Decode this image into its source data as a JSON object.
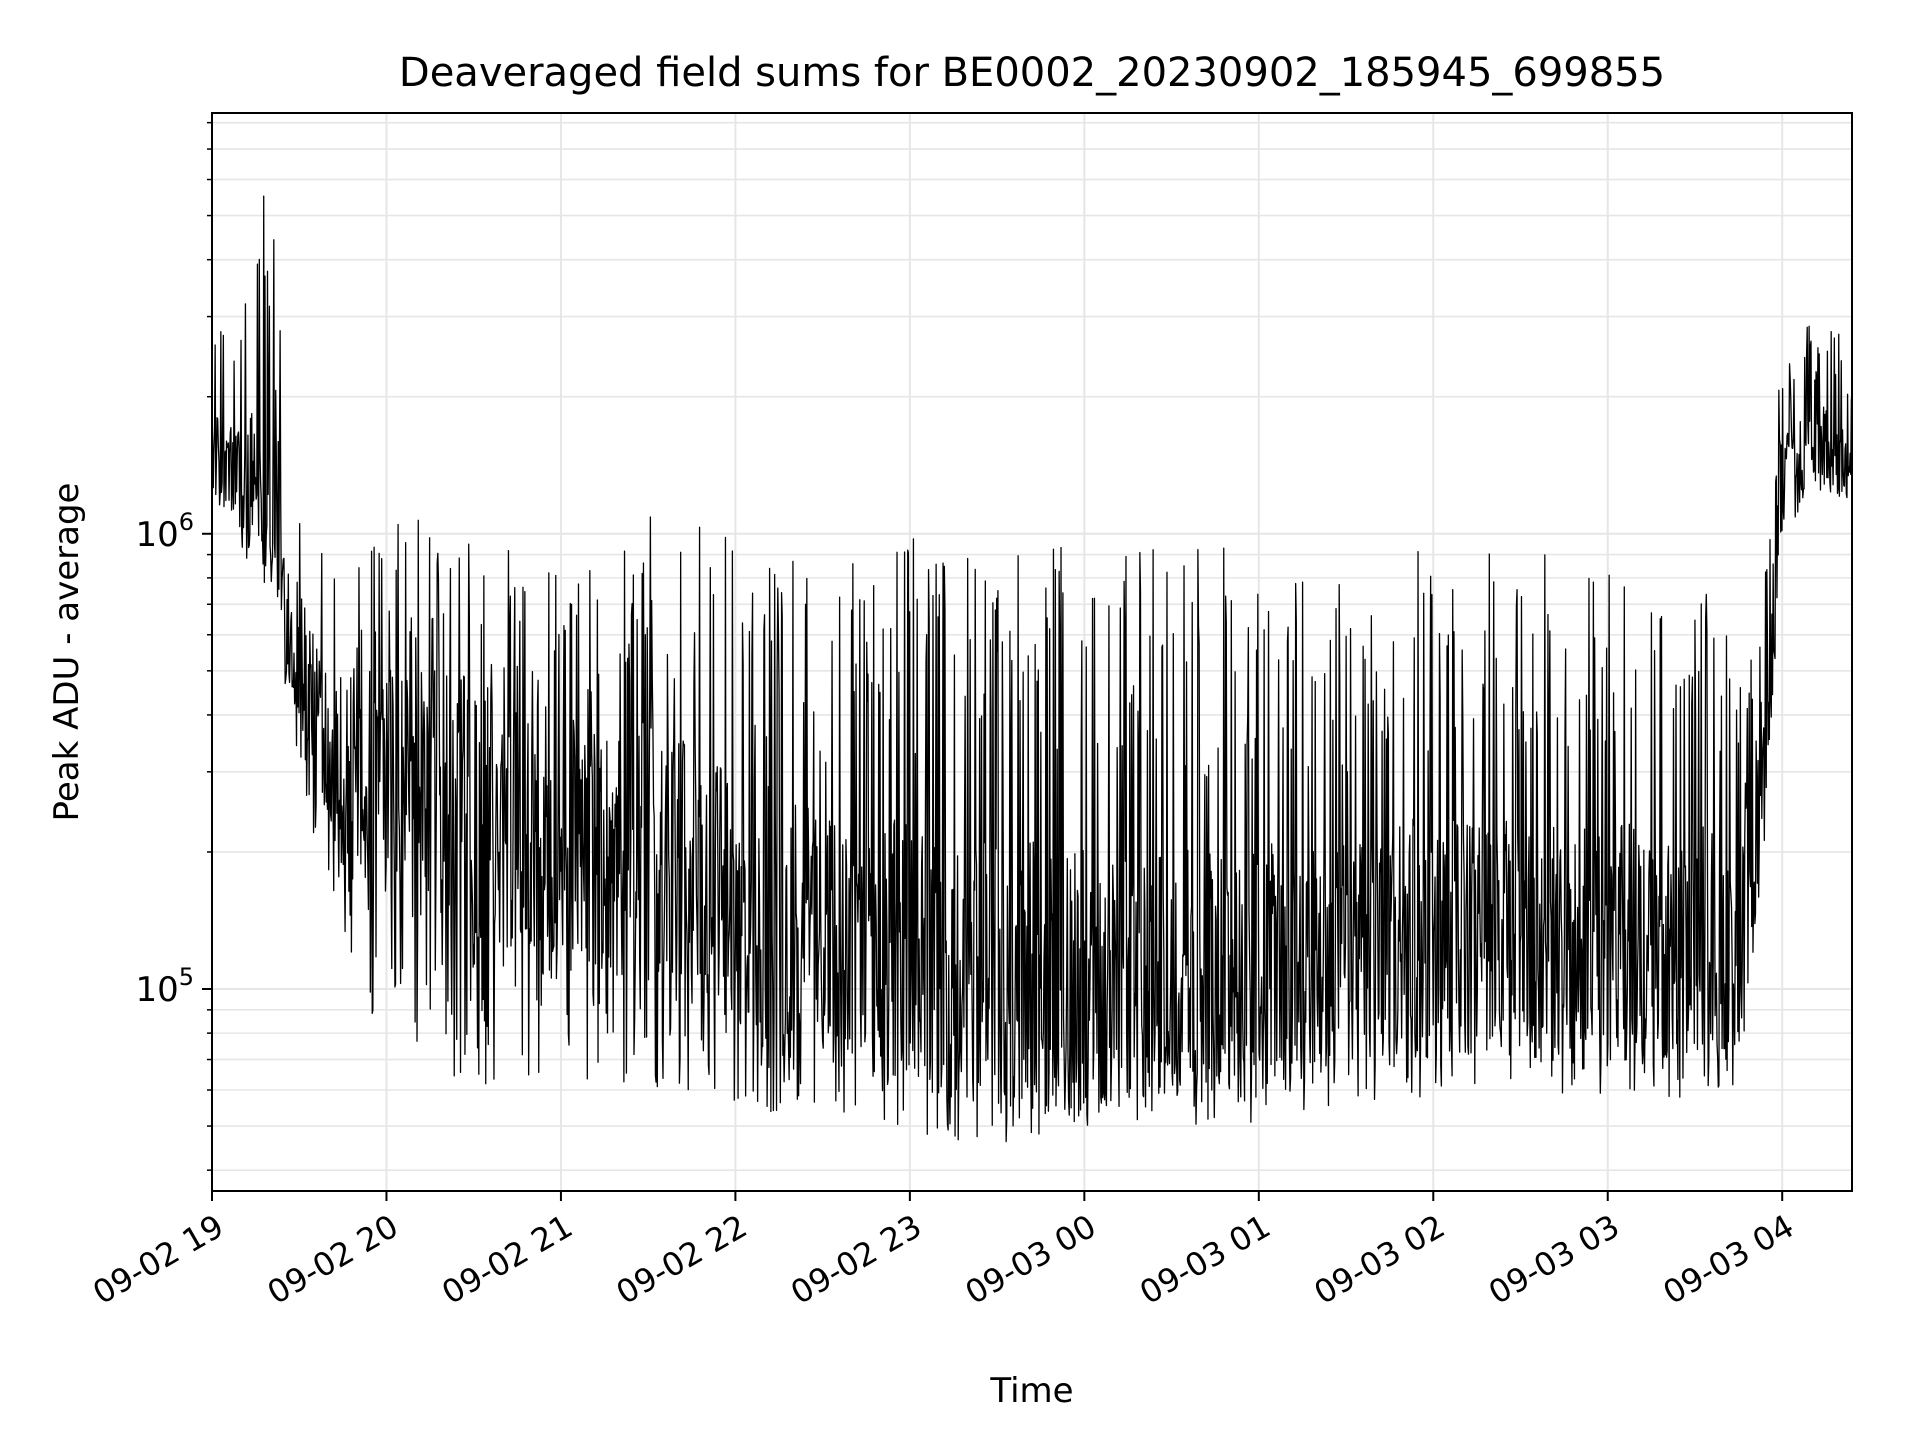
{
  "chart_data": {
    "type": "line",
    "title": "Deaveraged field sums for BE0002_20230902_185945_699855",
    "xlabel": "Time",
    "ylabel": "Peak ADU - average",
    "x_ticks": [
      "09-02 19",
      "09-02 20",
      "09-02 21",
      "09-02 22",
      "09-02 23",
      "09-03 00",
      "09-03 01",
      "09-03 02",
      "09-03 03",
      "09-03 04"
    ],
    "xlim": [
      "2023-09-02 19:00",
      "2023-09-03 04:24"
    ],
    "y_scale": "log",
    "ylim": [
      36000,
      8400000
    ],
    "y_ticks": [
      {
        "value": 100000,
        "base": "10",
        "exp": "5"
      },
      {
        "value": 1000000,
        "base": "10",
        "exp": "6"
      }
    ],
    "grid": true,
    "line_color": "#000000",
    "grid_color": "#e6e6e6",
    "series": [
      {
        "envelope_upper": [
          [
            "2023-09-02 19:00",
            2800000
          ],
          [
            "2023-09-02 19:10",
            3300000
          ],
          [
            "2023-09-02 19:20",
            7300000
          ],
          [
            "2023-09-02 19:25",
            3000000
          ],
          [
            "2023-09-02 19:35",
            1200000
          ],
          [
            "2023-09-02 19:50",
            1100000
          ],
          [
            "2023-09-02 20:10",
            1200000
          ],
          [
            "2023-09-02 20:30",
            1200000
          ],
          [
            "2023-09-02 21:00",
            1000000
          ],
          [
            "2023-09-02 21:30",
            1100000
          ],
          [
            "2023-09-02 22:00",
            1000000
          ],
          [
            "2023-09-02 22:30",
            850000
          ],
          [
            "2023-09-02 23:00",
            1000000
          ],
          [
            "2023-09-02 23:30",
            950000
          ],
          [
            "2023-09-03 00:00",
            1000000
          ],
          [
            "2023-09-03 00:30",
            1000000
          ],
          [
            "2023-09-03 01:00",
            900000
          ],
          [
            "2023-09-03 01:30",
            800000
          ],
          [
            "2023-09-03 02:00",
            1000000
          ],
          [
            "2023-09-03 02:30",
            900000
          ],
          [
            "2023-09-03 03:00",
            900000
          ],
          [
            "2023-09-03 03:45",
            700000
          ],
          [
            "2023-09-03 03:55",
            1200000
          ],
          [
            "2023-09-03 04:00",
            2500000
          ],
          [
            "2023-09-03 04:15",
            3500000
          ],
          [
            "2023-09-03 04:24",
            2200000
          ]
        ],
        "median": [
          [
            "2023-09-02 19:00",
            1500000
          ],
          [
            "2023-09-02 19:10",
            1300000
          ],
          [
            "2023-09-02 19:22",
            1400000
          ],
          [
            "2023-09-02 19:25",
            700000
          ],
          [
            "2023-09-02 19:35",
            450000
          ],
          [
            "2023-09-02 19:45",
            300000
          ],
          [
            "2023-09-02 20:00",
            280000
          ],
          [
            "2023-09-02 20:30",
            250000
          ],
          [
            "2023-09-02 21:00",
            220000
          ],
          [
            "2023-09-02 21:30",
            200000
          ],
          [
            "2023-09-02 22:00",
            160000
          ],
          [
            "2023-09-02 22:30",
            130000
          ],
          [
            "2023-09-02 23:00",
            120000
          ],
          [
            "2023-09-02 23:30",
            110000
          ],
          [
            "2023-09-03 00:00",
            105000
          ],
          [
            "2023-09-03 00:30",
            105000
          ],
          [
            "2023-09-03 01:00",
            110000
          ],
          [
            "2023-09-03 01:30",
            120000
          ],
          [
            "2023-09-03 02:00",
            130000
          ],
          [
            "2023-09-03 02:30",
            130000
          ],
          [
            "2023-09-03 03:00",
            125000
          ],
          [
            "2023-09-03 03:45",
            130000
          ],
          [
            "2023-09-03 03:55",
            400000
          ],
          [
            "2023-09-03 04:00",
            1400000
          ],
          [
            "2023-09-03 04:15",
            1550000
          ],
          [
            "2023-09-03 04:24",
            1350000
          ]
        ],
        "envelope_lower": [
          [
            "2023-09-02 19:00",
            1100000
          ],
          [
            "2023-09-02 19:10",
            900000
          ],
          [
            "2023-09-02 19:22",
            700000
          ],
          [
            "2023-09-02 19:30",
            300000
          ],
          [
            "2023-09-02 19:40",
            160000
          ],
          [
            "2023-09-02 19:50",
            90000
          ],
          [
            "2023-09-02 20:30",
            60000
          ],
          [
            "2023-09-02 21:00",
            65000
          ],
          [
            "2023-09-02 21:30",
            60000
          ],
          [
            "2023-09-02 22:00",
            55000
          ],
          [
            "2023-09-02 22:30",
            50000
          ],
          [
            "2023-09-02 23:00",
            47000
          ],
          [
            "2023-09-02 23:30",
            45000
          ],
          [
            "2023-09-03 00:00",
            50000
          ],
          [
            "2023-09-03 00:30",
            50000
          ],
          [
            "2023-09-03 01:00",
            50000
          ],
          [
            "2023-09-03 01:30",
            55000
          ],
          [
            "2023-09-03 02:00",
            58000
          ],
          [
            "2023-09-03 02:30",
            60000
          ],
          [
            "2023-09-03 03:00",
            58000
          ],
          [
            "2023-09-03 03:45",
            55000
          ],
          [
            "2023-09-03 03:55",
            250000
          ],
          [
            "2023-09-03 04:00",
            1000000
          ],
          [
            "2023-09-03 04:15",
            1250000
          ],
          [
            "2023-09-03 04:24",
            1150000
          ]
        ]
      }
    ]
  }
}
